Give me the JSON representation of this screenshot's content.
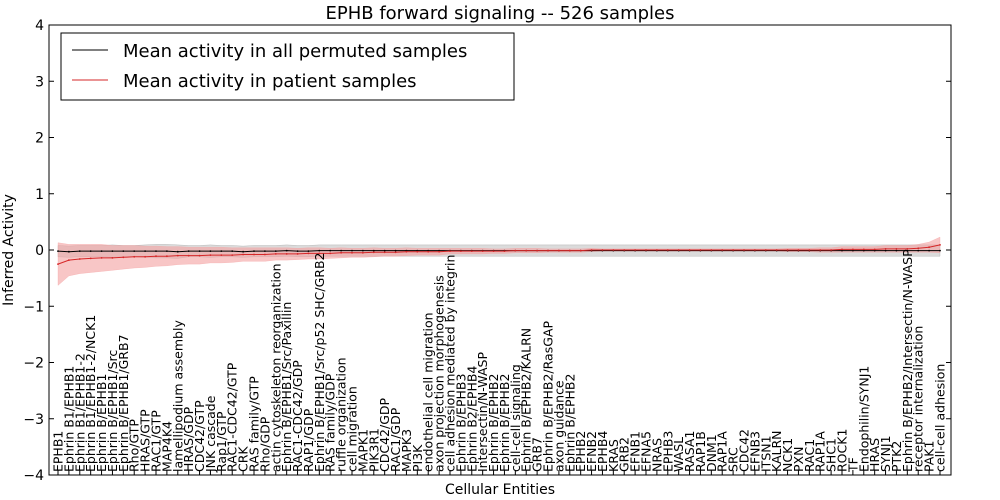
{
  "chart_data": {
    "type": "line",
    "title": "EPHB forward signaling -- 526 samples",
    "xlabel": "Cellular Entities",
    "ylabel": "Inferred Activity",
    "ylim": [
      -4,
      4
    ],
    "yticks": [
      -4,
      -3,
      -2,
      -1,
      0,
      1,
      2,
      3,
      4
    ],
    "ytick_labels": [
      "−4",
      "−3",
      "−2",
      "−1",
      "0",
      "1",
      "2",
      "3",
      "4"
    ],
    "legend_position": "top-left",
    "categories": [
      "EPHB1",
      "Ephrin B1/EPHB1",
      "Ephrin B1/EPHB1-2",
      "Ephrin B1/EPHB1-2/NCK1",
      "Ephrin B/EPHB1",
      "Ephrin B/EPHB1/Src",
      "Ephrin B/EPHB1/GRB7",
      "Rho/GTP",
      "HRAS/GTP",
      "RAC1/GTP",
      "MAP4K4",
      "lamellipodium assembly",
      "HRAS/GDP",
      "CDC42/GTP",
      "JNK cascade",
      "Rap1/GTP",
      "RAC1-CDC42/GTP",
      "CRK",
      "RAS family/GTP",
      "Rho/GDP",
      "actin cytoskeleton reorganization",
      "Ephrin B/EPHB1/Src/Paxillin",
      "RAC1-CDC42/GDP",
      "RAP1/GDP",
      "Ephrin B/EPHB1/Src/p52 SHC/GRB2",
      "RAS family/GDP",
      "ruffle organization",
      "cell migration",
      "MAPK1",
      "PIK3R1",
      "CDC42/GDP",
      "RAC1/GDP",
      "MAPK3",
      "PI3K",
      "endothelial cell migration",
      "axon projection morphogenesis",
      "cell adhesion mediated by integrin",
      "Ephrin B/EPHB3",
      "Ephrin B2/EPHB4",
      "Intersectin/N-WASP",
      "Ephrin B/EPHB2",
      "Ephrin B/EPHB2",
      "cell-cell signaling",
      "Ephrin B/EPHB2/KALRN",
      "GRB7",
      "Ephrin B/EPHB2/RasGAP",
      "axon guidance",
      "Ephrin B/EPHB2",
      "EPHB2",
      "EFNB2",
      "EPHB4",
      "KRAS",
      "GRB2",
      "EFNB1",
      "EFNA5",
      "NRAS",
      "EPHB3",
      "WASL",
      "RASA1",
      "RAP1B",
      "DNM1",
      "RAP1A",
      "SRC",
      "CDC42",
      "EFNB3",
      "ITSN1",
      "KALRN",
      "NCK1",
      "PXN",
      "RAC1",
      "RAP1A",
      "SHC1",
      "ROCK1",
      "TF",
      "Endophilin/SYNJ1",
      "HRAS",
      "SYNJ1",
      "PTK2",
      "Ephrin B/EPHB2/Intersectin/N-WASP",
      "receptor internalization",
      "PAK1",
      "cell-cell adhesion"
    ],
    "series": [
      {
        "name": "Mean activity in all permuted samples",
        "color": "#000000",
        "band_color": "#999999",
        "values": [
          -0.02,
          -0.03,
          -0.02,
          -0.02,
          -0.02,
          -0.02,
          -0.02,
          -0.02,
          -0.02,
          -0.02,
          -0.02,
          -0.03,
          -0.02,
          -0.02,
          -0.02,
          -0.02,
          -0.02,
          -0.03,
          -0.02,
          -0.02,
          -0.02,
          -0.01,
          -0.02,
          -0.02,
          -0.01,
          -0.01,
          -0.01,
          -0.01,
          -0.01,
          -0.01,
          -0.01,
          -0.01,
          -0.01,
          -0.01,
          -0.01,
          -0.01,
          -0.01,
          -0.01,
          -0.01,
          -0.01,
          -0.01,
          -0.01,
          -0.01,
          -0.01,
          -0.01,
          -0.01,
          -0.01,
          -0.01,
          -0.01,
          -0.01,
          -0.01,
          -0.01,
          -0.01,
          -0.01,
          -0.01,
          -0.01,
          -0.01,
          -0.01,
          -0.01,
          -0.01,
          -0.01,
          -0.01,
          -0.01,
          -0.01,
          -0.01,
          -0.01,
          -0.01,
          -0.01,
          -0.01,
          -0.01,
          -0.01,
          -0.01,
          -0.01,
          -0.01,
          -0.01,
          -0.01,
          -0.01,
          -0.01,
          -0.01,
          -0.01,
          -0.01,
          -0.01
        ],
        "band_halfwidth": [
          0.1,
          0.1,
          0.1,
          0.1,
          0.1,
          0.11,
          0.1,
          0.1,
          0.11,
          0.12,
          0.12,
          0.12,
          0.1,
          0.1,
          0.11,
          0.1,
          0.1,
          0.1,
          0.1,
          0.1,
          0.1,
          0.1,
          0.1,
          0.1,
          0.1,
          0.1,
          0.1,
          0.1,
          0.1,
          0.1,
          0.1,
          0.1,
          0.1,
          0.1,
          0.1,
          0.1,
          0.1,
          0.1,
          0.1,
          0.1,
          0.1,
          0.1,
          0.1,
          0.1,
          0.1,
          0.1,
          0.1,
          0.1,
          0.1,
          0.1,
          0.1,
          0.1,
          0.1,
          0.1,
          0.1,
          0.1,
          0.1,
          0.1,
          0.1,
          0.1,
          0.1,
          0.1,
          0.1,
          0.1,
          0.1,
          0.1,
          0.1,
          0.1,
          0.1,
          0.1,
          0.1,
          0.1,
          0.1,
          0.1,
          0.1,
          0.1,
          0.1,
          0.1,
          0.1,
          0.1,
          0.1,
          0.1
        ]
      },
      {
        "name": "Mean activity in patient samples",
        "color": "#d62728",
        "band_color": "#f4a0a0",
        "values": [
          -0.25,
          -0.18,
          -0.16,
          -0.15,
          -0.14,
          -0.14,
          -0.13,
          -0.12,
          -0.12,
          -0.11,
          -0.11,
          -0.1,
          -0.1,
          -0.1,
          -0.09,
          -0.09,
          -0.09,
          -0.08,
          -0.08,
          -0.08,
          -0.07,
          -0.07,
          -0.07,
          -0.06,
          -0.06,
          -0.06,
          -0.05,
          -0.05,
          -0.05,
          -0.04,
          -0.04,
          -0.04,
          -0.03,
          -0.03,
          -0.03,
          -0.03,
          -0.02,
          -0.02,
          -0.02,
          -0.02,
          -0.02,
          -0.02,
          -0.01,
          -0.01,
          -0.01,
          -0.01,
          -0.01,
          -0.01,
          -0.01,
          0.0,
          0.0,
          0.0,
          0.0,
          0.0,
          0.0,
          0.0,
          0.0,
          0.0,
          0.0,
          0.0,
          0.0,
          0.0,
          0.0,
          0.0,
          0.0,
          0.0,
          0.0,
          0.0,
          0.0,
          0.0,
          0.0,
          0.0,
          0.01,
          0.01,
          0.01,
          0.01,
          0.02,
          0.02,
          0.02,
          0.03,
          0.05,
          0.09
        ],
        "band_halfwidth": [
          0.38,
          0.28,
          0.26,
          0.25,
          0.24,
          0.22,
          0.21,
          0.2,
          0.19,
          0.18,
          0.17,
          0.16,
          0.15,
          0.15,
          0.14,
          0.14,
          0.13,
          0.12,
          0.12,
          0.12,
          0.11,
          0.11,
          0.1,
          0.1,
          0.1,
          0.09,
          0.09,
          0.08,
          0.08,
          0.08,
          0.07,
          0.07,
          0.07,
          0.06,
          0.06,
          0.06,
          0.05,
          0.05,
          0.05,
          0.05,
          0.04,
          0.04,
          0.04,
          0.04,
          0.04,
          0.03,
          0.03,
          0.03,
          0.03,
          0.03,
          0.02,
          0.02,
          0.02,
          0.02,
          0.02,
          0.02,
          0.02,
          0.02,
          0.02,
          0.02,
          0.02,
          0.02,
          0.02,
          0.02,
          0.02,
          0.02,
          0.02,
          0.03,
          0.03,
          0.03,
          0.04,
          0.04,
          0.05,
          0.05,
          0.05,
          0.05,
          0.06,
          0.06,
          0.06,
          0.07,
          0.09,
          0.14
        ]
      }
    ]
  }
}
